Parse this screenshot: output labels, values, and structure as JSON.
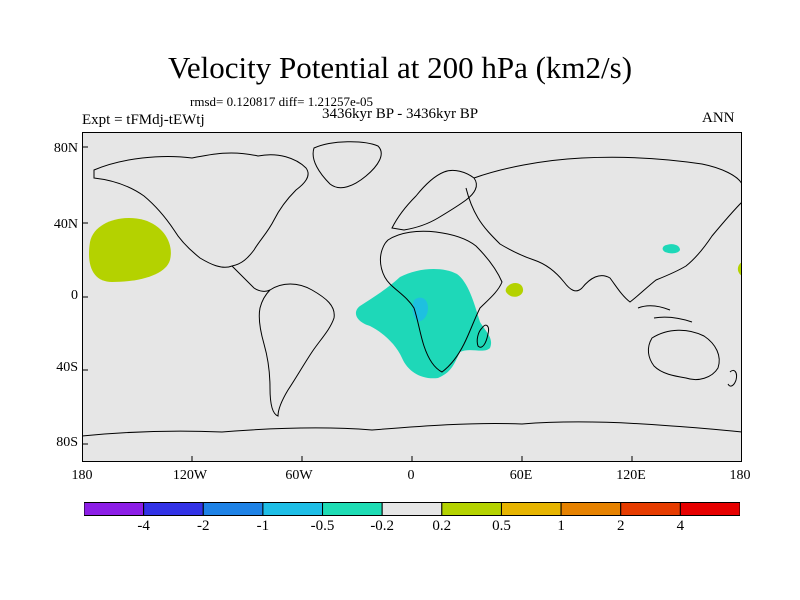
{
  "header": {
    "title": "Velocity Potential at 200 hPa (km2/s)",
    "stats": "rmsd= 0.120817 diff= 1.21257e-05",
    "experiment": "Expt = tFMdj-tEWtj",
    "period": "3436kyr BP - 3436kyr BP",
    "season": "ANN"
  },
  "axes": {
    "lat_labels": [
      "80N",
      "40N",
      "0",
      "40S",
      "80S"
    ],
    "lon_labels": [
      "180",
      "120W",
      "60W",
      "0",
      "60E",
      "120E",
      "180"
    ]
  },
  "colors": {
    "ocean_land_neutral": "#e6e6e6",
    "coast": "#000000",
    "positive_light": "#b4d200",
    "negative_light": "#1ed8b8",
    "negative_medium": "#1ec0e0"
  },
  "colorbar": {
    "colors": [
      "#8c1ee6",
      "#3232e6",
      "#1e82e6",
      "#1ebee6",
      "#1edcb4",
      "#e6e6e6",
      "#b4d200",
      "#e6b400",
      "#e68200",
      "#e63c00",
      "#e60000"
    ],
    "labels": [
      "-4",
      "-2",
      "-1",
      "-0.5",
      "-0.2",
      "0.2",
      "0.5",
      "1",
      "2",
      "4"
    ]
  }
}
